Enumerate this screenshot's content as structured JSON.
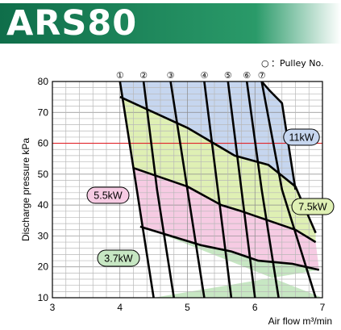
{
  "header": {
    "title": "ARS80"
  },
  "legend": {
    "symbol": "○",
    "text": "：Pulley No."
  },
  "colors": {
    "header_dark": "#0f6e4a",
    "header_light": "#35a777",
    "zone_11kw": "#c6d6ef",
    "zone_7_5kw": "#dff0b4",
    "zone_5_5kw": "#f6cbe3",
    "zone_3_7kw": "#c7e7c3",
    "ref_line": "#e0242a"
  },
  "chart_data": {
    "type": "line",
    "xlabel": "Air flow  m³/min",
    "ylabel": "Discharge pressure kPa",
    "xlim": [
      3,
      7
    ],
    "ylim": [
      10,
      80
    ],
    "x_ticks": [
      "3",
      "4",
      "5",
      "6",
      "7"
    ],
    "y_ticks": [
      "10",
      "20",
      "30",
      "40",
      "50",
      "60",
      "70",
      "80"
    ],
    "grid": true,
    "reference_line": {
      "y": 60
    },
    "zone_labels": [
      {
        "label": "11kW"
      },
      {
        "label": "7.5kW"
      },
      {
        "label": "5.5kW"
      },
      {
        "label": "3.7kW"
      }
    ],
    "motor_limits": [
      {
        "name": "11kW",
        "x": [
          6.1,
          6.18,
          6.22,
          6.4,
          6.6
        ],
        "y": [
          80,
          78,
          77,
          73,
          45
        ]
      },
      {
        "name": "7.5kW",
        "x": [
          4.0,
          5.0,
          5.7,
          6.2,
          6.6,
          6.9
        ],
        "y": [
          75,
          65,
          56,
          53,
          46,
          31
        ]
      },
      {
        "name": "5.5kW",
        "x": [
          4.2,
          4.6,
          5.0,
          5.5,
          5.8,
          6.6,
          6.9
        ],
        "y": [
          52,
          49,
          46,
          40,
          38,
          32,
          28
        ]
      },
      {
        "name": "3.7kW",
        "x": [
          4.3,
          4.75,
          5.2,
          5.65,
          6.05,
          6.55,
          6.95
        ],
        "y": [
          33,
          30,
          27,
          25,
          22,
          21,
          19
        ]
      }
    ],
    "pulley_curves": [
      {
        "name": "①",
        "x": [
          4.0,
          4.25,
          4.5
        ],
        "y": [
          80,
          45,
          10
        ]
      },
      {
        "name": "②",
        "x": [
          4.35,
          4.55,
          4.8
        ],
        "y": [
          80,
          45,
          10
        ]
      },
      {
        "name": "③",
        "x": [
          4.75,
          5.0,
          5.25
        ],
        "y": [
          80,
          45,
          10
        ]
      },
      {
        "name": "④",
        "x": [
          5.25,
          5.45,
          5.65
        ],
        "y": [
          80,
          45,
          10
        ]
      },
      {
        "name": "⑤",
        "x": [
          5.6,
          5.8,
          6.0
        ],
        "y": [
          80,
          45,
          10
        ]
      },
      {
        "name": "⑥",
        "x": [
          5.88,
          6.1,
          6.35
        ],
        "y": [
          80,
          45,
          10
        ]
      },
      {
        "name": "⑦",
        "x": [
          6.1,
          6.4,
          6.9
        ],
        "y": [
          80,
          45,
          10
        ]
      }
    ]
  }
}
